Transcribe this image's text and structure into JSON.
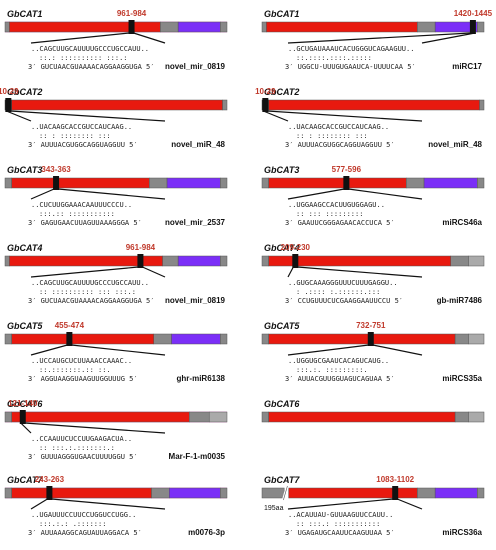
{
  "panels": [
    {
      "gene": "GbCAT1",
      "site": "961-984",
      "mirna": "novel_mir_0819",
      "mrna_seq": "..CAGCUUGCAUUUUGCCCUGCCAUU..",
      "pairing": "::.: :::::::::: :::.:",
      "mirna_seq": "3′ GUCUAACGUAAAACAGGAAGGUGA 5′",
      "col": 0,
      "row": 0,
      "marker": 0.57,
      "segs": [
        [
          0,
          0.02,
          "#888888"
        ],
        [
          0.02,
          0.7,
          "#e8190f"
        ],
        [
          0.7,
          0.78,
          "#888888"
        ],
        [
          0.78,
          0.97,
          "#7b2ff7"
        ],
        [
          0.97,
          1,
          "#888888"
        ]
      ],
      "hl": true
    },
    {
      "gene": "GbCAT1",
      "site": "1420-1445",
      "mirna": "miRC17",
      "mrna_seq": "..GCUGAUAAAUCACUGGGUCAGAAGUU..",
      "pairing": "::.::::.::::.:::::",
      "mirna_seq": "3′ UGGCU-UUUGUGAAUCA-UUUUCAA 5′",
      "col": 1,
      "row": 0,
      "marker": 0.95,
      "segs": [
        [
          0,
          0.02,
          "#888888"
        ],
        [
          0.02,
          0.7,
          "#e8190f"
        ],
        [
          0.7,
          0.78,
          "#888888"
        ],
        [
          0.78,
          0.97,
          "#7b2ff7"
        ],
        [
          0.97,
          1,
          "#888888"
        ]
      ]
    },
    {
      "gene": "GbCAT2",
      "site": "10-29",
      "mirna": "novel_miR_48",
      "mrna_seq": "..UACAAGCACCGUCCAUCAAG..",
      "pairing": ":: : :::::::: :::",
      "mirna_seq": "3′ AUUUACGUGGCAGGUAGGUU 5′",
      "col": 0,
      "row": 1,
      "marker": 0.015,
      "segs": [
        [
          0,
          0.03,
          "#222222"
        ],
        [
          0.03,
          0.98,
          "#e8190f"
        ],
        [
          0.98,
          1,
          "#888888"
        ]
      ]
    },
    {
      "gene": "GbCAT2",
      "site": "10-29",
      "mirna": "novel_miR_48",
      "mrna_seq": "..UACAAGCACCGUCCAUCAAG..",
      "pairing": ":: : :::::::: :::",
      "mirna_seq": "3′ AUUUACGUGGCAGGUAGGUU 5′",
      "col": 1,
      "row": 1,
      "marker": 0.015,
      "segs": [
        [
          0,
          0.03,
          "#222222"
        ],
        [
          0.03,
          0.98,
          "#e8190f"
        ],
        [
          0.98,
          1,
          "#888888"
        ]
      ]
    },
    {
      "gene": "GbCAT3",
      "site": "343-363",
      "mirna": "novel_mir_2537",
      "mrna_seq": "..CUCUUGGAAACAAUUUCCCU..",
      "pairing": ":::.:: :::::::::::",
      "mirna_seq": "3′ GAGUGAACUUAGUUAAAGGGA 5′",
      "col": 0,
      "row": 2,
      "marker": 0.23,
      "segs": [
        [
          0,
          0.03,
          "#888888"
        ],
        [
          0.03,
          0.65,
          "#e8190f"
        ],
        [
          0.65,
          0.73,
          "#888888"
        ],
        [
          0.73,
          0.97,
          "#7b2ff7"
        ],
        [
          0.97,
          1,
          "#888888"
        ]
      ]
    },
    {
      "gene": "GbCAT3",
      "site": "577-596",
      "mirna": "miRCS46a",
      "mrna_seq": "..UGGAAGCCACUUGUGGAGU..",
      "pairing": ":: ::: :::::::::",
      "mirna_seq": "3′ GAAUUCGGGAGAACACCUCA 5′",
      "col": 1,
      "row": 2,
      "marker": 0.38,
      "segs": [
        [
          0,
          0.03,
          "#888888"
        ],
        [
          0.03,
          0.65,
          "#e8190f"
        ],
        [
          0.65,
          0.73,
          "#888888"
        ],
        [
          0.73,
          0.97,
          "#7b2ff7"
        ],
        [
          0.97,
          1,
          "#888888"
        ]
      ]
    },
    {
      "gene": "GbCAT4",
      "site": "961-984",
      "mirna": "novel_mir_0819",
      "mrna_seq": "..CAGCUUGCAUUUUGCCCUGCCAUU..",
      "pairing": ":: :::::::::: ::: :::.:",
      "mirna_seq": "3′ GUCUAACGUAAAACAGGAAGGUGA 5′",
      "col": 0,
      "row": 3,
      "marker": 0.61,
      "segs": [
        [
          0,
          0.02,
          "#888888"
        ],
        [
          0.02,
          0.71,
          "#e8190f"
        ],
        [
          0.71,
          0.78,
          "#888888"
        ],
        [
          0.78,
          0.97,
          "#7b2ff7"
        ],
        [
          0.97,
          1,
          "#888888"
        ]
      ]
    },
    {
      "gene": "GbCAT4",
      "site": "209-230",
      "mirna": "gb-miR7486",
      "mrna_seq": "..GUGCAAAGGGUUUCUUUGAGGU..",
      "pairing": ": .:::: :.::::::.:::",
      "mirna_seq": "3′ CCUGUUUCUCGAAGGAAUUCCU 5′",
      "col": 1,
      "row": 3,
      "marker": 0.15,
      "segs": [
        [
          0,
          0.03,
          "#888888"
        ],
        [
          0.03,
          0.85,
          "#e8190f"
        ],
        [
          0.85,
          0.93,
          "#888888"
        ],
        [
          0.93,
          1,
          "#aaaaaa"
        ]
      ]
    },
    {
      "gene": "GbCAT5",
      "site": "455-474",
      "mirna": "ghr-miR6138",
      "mrna_seq": "..UCCAUGCUCUUAAACCAAAC..",
      "pairing": "::.:::::::.:: ::.",
      "mirna_seq": "3′ AGGUAAGGUAAGUUGGUUUG 5′",
      "col": 0,
      "row": 4,
      "marker": 0.29,
      "segs": [
        [
          0,
          0.03,
          "#888888"
        ],
        [
          0.03,
          0.67,
          "#e8190f"
        ],
        [
          0.67,
          0.75,
          "#888888"
        ],
        [
          0.75,
          0.97,
          "#7b2ff7"
        ],
        [
          0.97,
          1,
          "#888888"
        ]
      ]
    },
    {
      "gene": "GbCAT5",
      "site": "732-751",
      "mirna": "miRCS35a",
      "mrna_seq": "..UGGUGCGAAUCACAGUCAUG..",
      "pairing": ":::.:. :::::::::.",
      "mirna_seq": "3′ AUUACGUUGGUAGUCAGUAA 5′",
      "col": 1,
      "row": 4,
      "marker": 0.49,
      "segs": [
        [
          0,
          0.03,
          "#888888"
        ],
        [
          0.03,
          0.87,
          "#e8190f"
        ],
        [
          0.87,
          0.93,
          "#888888"
        ],
        [
          0.93,
          1,
          "#aaaaaa"
        ]
      ]
    },
    {
      "gene": "GbCAT6",
      "site": "121-140",
      "mirna": "Mar-F-1-m0035",
      "mrna_seq": "..CCAAUUCUCCUUGAAGACUA..",
      "pairing": ":: :::.:.:::::::.:",
      "mirna_seq": "3′ GUUUAGGGUGAACUUUUGGU 5′",
      "col": 0,
      "row": 5,
      "marker": 0.08,
      "segs": [
        [
          0,
          0.03,
          "#888888"
        ],
        [
          0.03,
          0.83,
          "#e8190f"
        ],
        [
          0.83,
          0.92,
          "#888888"
        ],
        [
          0.92,
          1,
          "#aaaaaa"
        ]
      ],
      "hl": true
    },
    {
      "gene": "GbCAT6",
      "site": "",
      "mirna": "",
      "mrna_seq": "",
      "pairing": "",
      "mirna_seq": "",
      "col": 1,
      "row": 5,
      "marker": -1,
      "segs": [
        [
          0,
          0.03,
          "#888888"
        ],
        [
          0.03,
          0.87,
          "#e8190f"
        ],
        [
          0.87,
          0.93,
          "#888888"
        ],
        [
          0.93,
          1,
          "#aaaaaa"
        ]
      ]
    },
    {
      "gene": "GbCAT7",
      "site": "243-263",
      "mirna": "m0076-3p",
      "mrna_seq": "..UGAUUUCCUUCCUGGUCCUGG..",
      "pairing": ":::.:.: .:::::::",
      "mirna_seq": "3′ AUUAAAGGCAGUAUUAGGACA 5′",
      "col": 0,
      "row": 6,
      "marker": 0.2,
      "segs": [
        [
          0,
          0.03,
          "#888888"
        ],
        [
          0.03,
          0.66,
          "#e8190f"
        ],
        [
          0.66,
          0.74,
          "#888888"
        ],
        [
          0.74,
          0.97,
          "#7b2ff7"
        ],
        [
          0.97,
          1,
          "#888888"
        ]
      ],
      "hl": true
    },
    {
      "gene": "GbCAT7",
      "site": "1083-1102",
      "mirna": "miRCS36a",
      "mrna_seq": "..ACAUUAU-GUUAAGUUCCAUU..",
      "pairing": ":: :::.: :::::::::::",
      "mirna_seq": "3′ UGAGAUGCAAUUCAAGUUAA 5′",
      "col": 1,
      "row": 6,
      "marker": 0.6,
      "segs": [
        [
          0,
          0.1,
          "#888888"
        ],
        [
          0.12,
          0.7,
          "#e8190f"
        ],
        [
          0.7,
          0.78,
          "#888888"
        ],
        [
          0.78,
          0.97,
          "#7b2ff7"
        ],
        [
          0.97,
          1,
          "#888888"
        ]
      ],
      "note": "195aa"
    }
  ]
}
